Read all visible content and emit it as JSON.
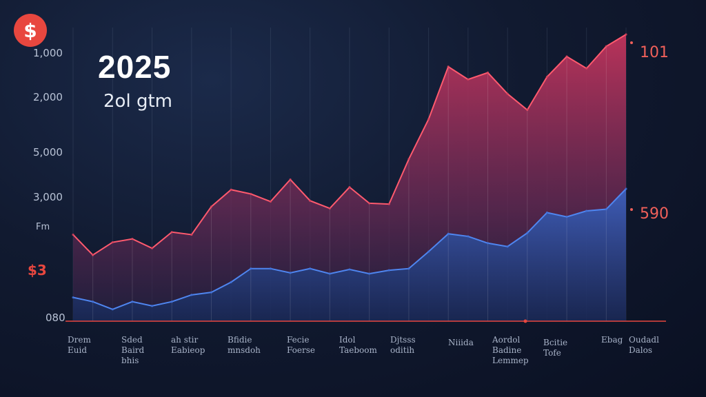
{
  "header": {
    "badge_icon": "dollar-icon",
    "title": "2025",
    "subtitle": "2ol gtm"
  },
  "y_ticks": [
    "1,000",
    "2,000",
    "5,000",
    "3,000",
    "Fm",
    "080"
  ],
  "y_marker": "$3",
  "end_labels": {
    "top": "101",
    "bottom": "590"
  },
  "x_ticks": [
    "Drem\nEuid",
    "Sded\nBaird\nbhis",
    "ah stir\nEabieop",
    "Bfidie\nmnsdoh",
    "Fecie\nFoerse",
    "Idol\nTaeboom",
    "Djtsss\noditih",
    "Niiida",
    "Aordol\nBadine\nLemmep",
    "Bcitie\nTofe",
    "Ebag",
    "Oudadl\nDalos"
  ],
  "colors": {
    "accent": "#e8473f",
    "red_series": "#d6405a",
    "blue_series": "#3f6fd8",
    "background": "#111a30"
  },
  "chart_data": {
    "type": "area",
    "title": "2025",
    "subtitle": "2ol gtm",
    "grid": true,
    "series": [
      {
        "color": "#d6405a",
        "values": [
          1020,
          780,
          930,
          970,
          860,
          1050,
          1020,
          1350,
          1550,
          1500,
          1410,
          1670,
          1420,
          1330,
          1580,
          1390,
          1380,
          1910,
          2380,
          3000,
          2850,
          2930,
          2680,
          2490,
          2880,
          3120,
          2980,
          3240,
          3380
        ]
      },
      {
        "color": "#3f6fd8",
        "values": [
          280,
          230,
          140,
          230,
          180,
          230,
          310,
          340,
          460,
          620,
          620,
          570,
          620,
          560,
          610,
          560,
          600,
          620,
          820,
          1030,
          1000,
          920,
          880,
          1040,
          1280,
          1230,
          1300,
          1320,
          1560
        ]
      }
    ],
    "markers": [
      "$3",
      "101",
      "590"
    ]
  }
}
